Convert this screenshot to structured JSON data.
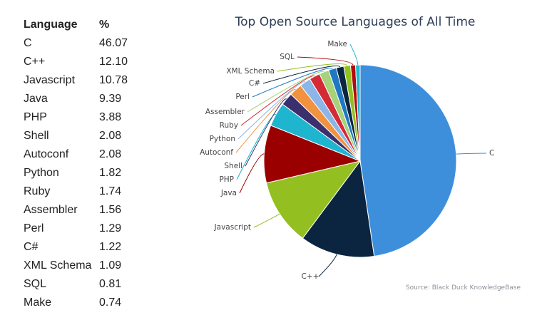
{
  "table": {
    "header": {
      "language": "Language",
      "percent": "%"
    },
    "rows": [
      {
        "language": "C",
        "percent": "46.07"
      },
      {
        "language": "C++",
        "percent": "12.10"
      },
      {
        "language": "Javascript",
        "percent": "10.78"
      },
      {
        "language": "Java",
        "percent": "9.39"
      },
      {
        "language": "PHP",
        "percent": "3.88"
      },
      {
        "language": "Shell",
        "percent": "2.08"
      },
      {
        "language": "Autoconf",
        "percent": "2.08"
      },
      {
        "language": "Python",
        "percent": "1.82"
      },
      {
        "language": "Ruby",
        "percent": "1.74"
      },
      {
        "language": "Assembler",
        "percent": "1.56"
      },
      {
        "language": "Perl",
        "percent": "1.29"
      },
      {
        "language": "C#",
        "percent": "1.22"
      },
      {
        "language": "XML Schema",
        "percent": "1.09"
      },
      {
        "language": "SQL",
        "percent": "0.81"
      },
      {
        "language": "Make",
        "percent": "0.74"
      }
    ]
  },
  "chart_data": {
    "type": "pie",
    "title": "Top Open Source Languages of All Time",
    "source": "Source: Black Duck KnowledgeBase",
    "legend": "none",
    "slices": [
      {
        "label": "C",
        "value": 46.07,
        "color": "#3d8fdc"
      },
      {
        "label": "C++",
        "value": 12.1,
        "color": "#0b2540"
      },
      {
        "label": "Javascript",
        "value": 10.78,
        "color": "#93c020"
      },
      {
        "label": "Java",
        "value": 9.39,
        "color": "#9b0000"
      },
      {
        "label": "PHP",
        "value": 3.88,
        "color": "#20b5cf"
      },
      {
        "label": "Shell",
        "value": 2.08,
        "color": "#3b2f6e"
      },
      {
        "label": "Autoconf",
        "value": 2.08,
        "color": "#f0923e"
      },
      {
        "label": "Python",
        "value": 1.82,
        "color": "#8cb5e8"
      },
      {
        "label": "Ruby",
        "value": 1.74,
        "color": "#d42a36"
      },
      {
        "label": "Assembler",
        "value": 1.56,
        "color": "#a6d27a"
      },
      {
        "label": "Perl",
        "value": 1.29,
        "color": "#1f78c1"
      },
      {
        "label": "C#",
        "value": 1.22,
        "color": "#0b2540"
      },
      {
        "label": "XML Schema",
        "value": 1.09,
        "color": "#93c020"
      },
      {
        "label": "SQL",
        "value": 0.81,
        "color": "#b00c0c"
      },
      {
        "label": "Make",
        "value": 0.74,
        "color": "#24b7d0"
      }
    ]
  }
}
